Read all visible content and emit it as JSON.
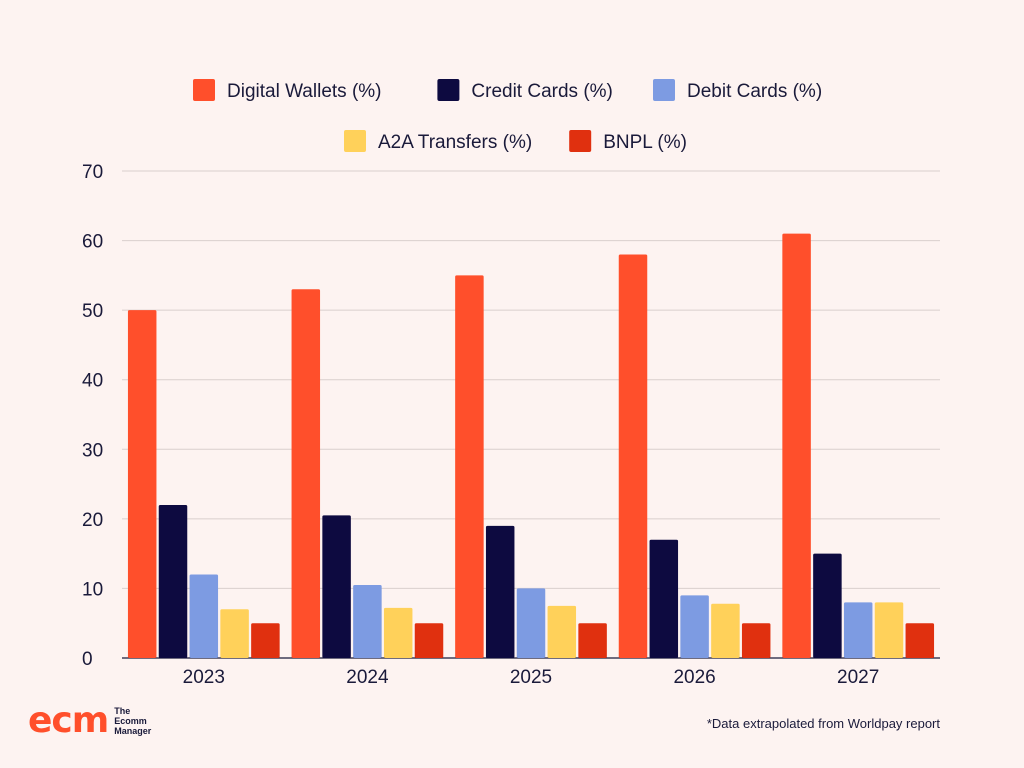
{
  "chart_data": {
    "type": "bar",
    "categories": [
      "2023",
      "2024",
      "2025",
      "2026",
      "2027"
    ],
    "series": [
      {
        "name": "Digital Wallets (%)",
        "color": "#FF4F2B",
        "values": [
          50,
          53,
          55,
          58,
          61
        ]
      },
      {
        "name": "Credit Cards (%)",
        "color": "#0D0A40",
        "values": [
          22,
          20.5,
          19,
          17,
          15
        ]
      },
      {
        "name": "Debit Cards (%)",
        "color": "#7D9BE2",
        "values": [
          12,
          10.5,
          10,
          9,
          8
        ]
      },
      {
        "name": "A2A Transfers (%)",
        "color": "#FFD15A",
        "values": [
          7,
          7.2,
          7.5,
          7.8,
          8
        ]
      },
      {
        "name": "BNPL (%)",
        "color": "#E0300F",
        "values": [
          5,
          5,
          5,
          5,
          5
        ]
      }
    ],
    "yticks": [
      "0",
      "10",
      "20",
      "30",
      "40",
      "50",
      "60",
      "70"
    ],
    "ylim": [
      0,
      70
    ],
    "grid": true,
    "legend_position": "top-center",
    "title": "",
    "xlabel": "",
    "ylabel": ""
  },
  "branding": {
    "logo_mark": "ecm",
    "logo_line1": "The",
    "logo_line2": "Ecomm",
    "logo_line3": "Manager"
  },
  "footnote": "*Data extrapolated from Worldpay report"
}
